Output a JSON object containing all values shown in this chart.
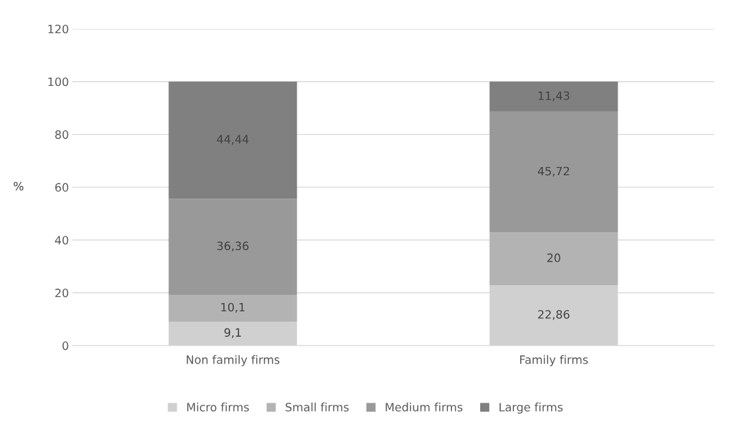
{
  "chart_data": {
    "type": "bar",
    "stacked": true,
    "ylabel": "%",
    "categories": [
      "Non family firms",
      "Family firms"
    ],
    "series": [
      {
        "name": "Micro firms",
        "color": "#d0d0d0",
        "values": [
          9.1,
          22.86
        ],
        "value_labels": [
          "9,1",
          "22,86"
        ]
      },
      {
        "name": "Small firms",
        "color": "#b3b3b3",
        "values": [
          10.1,
          20
        ],
        "value_labels": [
          "10,1",
          "20"
        ]
      },
      {
        "name": "Medium firms",
        "color": "#999999",
        "values": [
          36.36,
          45.72
        ],
        "value_labels": [
          "36,36",
          "45,72"
        ]
      },
      {
        "name": "Large firms",
        "color": "#808080",
        "values": [
          44.44,
          11.43
        ],
        "value_labels": [
          "44,44",
          "11,43"
        ]
      }
    ],
    "ylim": [
      0,
      120
    ],
    "yticks": [
      0,
      20,
      40,
      60,
      80,
      100,
      120
    ],
    "grid": "y",
    "legend": "bottom"
  }
}
